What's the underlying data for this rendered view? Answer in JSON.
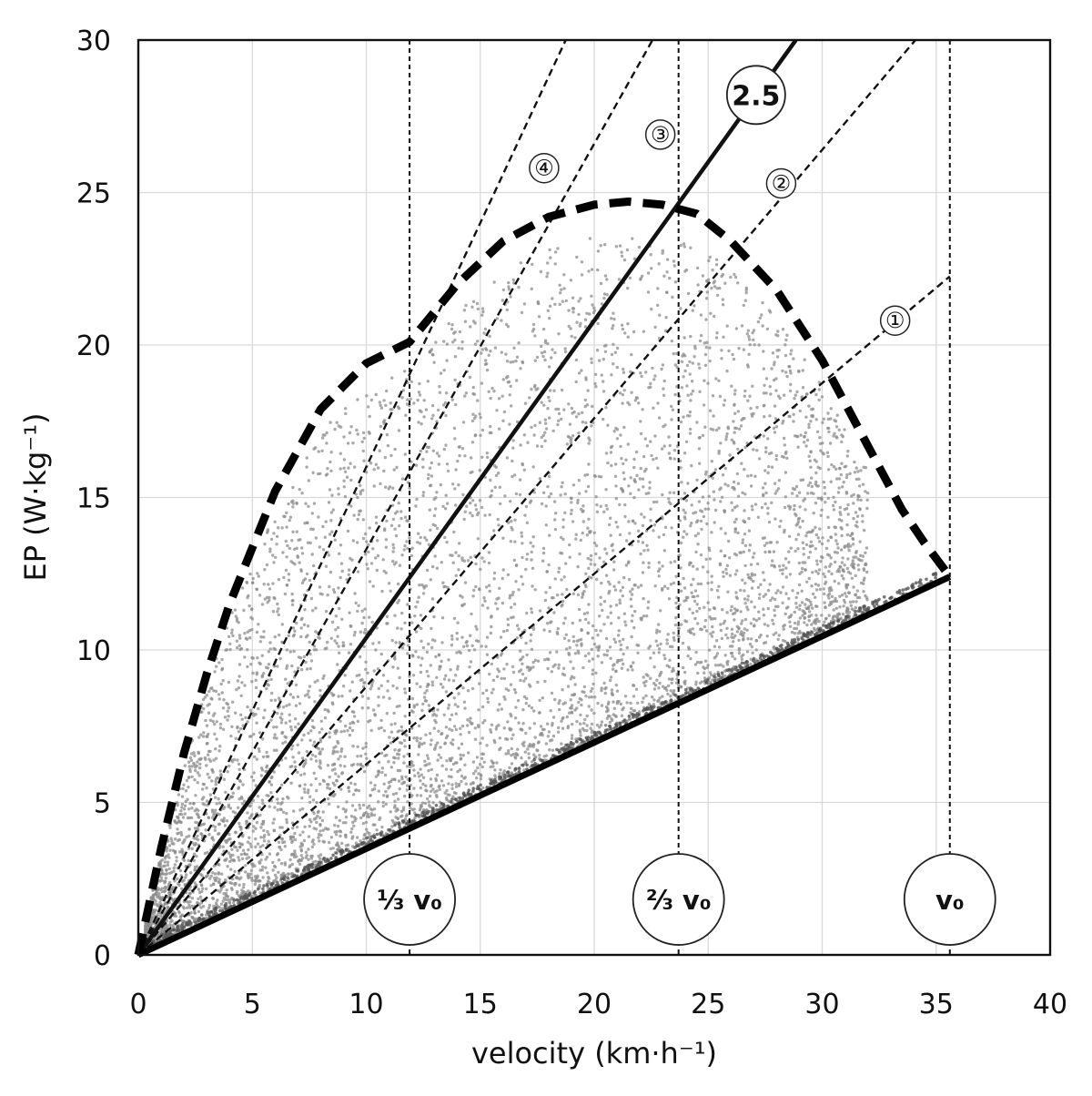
{
  "chart_data": {
    "type": "scatter",
    "xlabel": "velocity (km·h⁻¹)",
    "ylabel": "EP (W·kg⁻¹)",
    "xlim": [
      0,
      40
    ],
    "ylim": [
      0,
      30
    ],
    "x_ticks": [
      "0",
      "5",
      "10",
      "15",
      "20",
      "25",
      "30",
      "35",
      "40"
    ],
    "y_ticks": [
      "0",
      "5",
      "10",
      "15",
      "20",
      "25",
      "30"
    ],
    "grid": true,
    "legend": "none",
    "v0": 35.6,
    "reference_lines": [
      {
        "label": "⅓ v₀",
        "x": 11.9
      },
      {
        "label": "⅔ v₀",
        "x": 23.7
      },
      {
        "label": "v₀",
        "x": 35.6
      }
    ],
    "iso_lines": [
      {
        "label": "①",
        "slope": 0.625,
        "style": "dashed",
        "label_at": [
          33.2,
          20.8
        ]
      },
      {
        "label": "②",
        "slope": 0.88,
        "style": "dashed",
        "label_at": [
          28.2,
          25.3
        ]
      },
      {
        "label": "③",
        "slope": 1.33,
        "style": "dashed",
        "label_at": [
          22.9,
          26.9
        ]
      },
      {
        "label": "2.5",
        "slope": 1.04,
        "style": "solid",
        "label_at": [
          27.1,
          28.2
        ]
      },
      {
        "label": "④",
        "slope": 1.6,
        "style": "dashed",
        "label_at": [
          17.8,
          25.8
        ]
      }
    ],
    "upper_boundary": {
      "style": "dashed",
      "x": [
        0,
        1,
        2,
        3,
        4,
        6,
        8,
        10,
        11.9,
        14,
        16,
        18,
        20,
        21.5,
        23,
        24.5,
        26,
        28,
        30,
        32,
        33.5,
        34.5,
        35.2,
        35.6
      ],
      "y": [
        0,
        3.5,
        6.6,
        9.2,
        11.5,
        15.2,
        17.9,
        19.4,
        20.1,
        22.0,
        23.4,
        24.2,
        24.6,
        24.7,
        24.6,
        24.3,
        23.4,
        21.8,
        19.5,
        16.7,
        14.6,
        13.5,
        12.8,
        12.4
      ]
    },
    "lower_boundary": {
      "style": "solid",
      "x": [
        0,
        35.6
      ],
      "y": [
        0,
        12.4
      ]
    },
    "scatter": {
      "color": "#8c8c8c",
      "x_range": [
        0,
        32
      ],
      "y_range": [
        0,
        23.5
      ],
      "description_points": "dense cloud between lower bound and upper dashed boundary, densest near origin"
    }
  }
}
